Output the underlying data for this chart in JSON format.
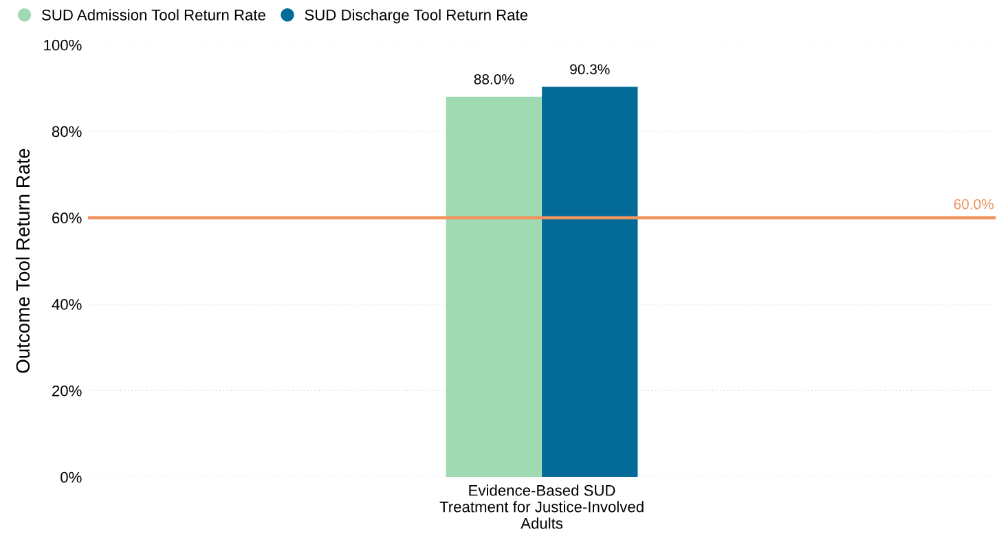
{
  "chart_data": {
    "type": "bar",
    "categories": [
      "Evidence-Based SUD\nTreatment for Justice-Involved\nAdults"
    ],
    "ylabel": "Outcome Tool Return Rate",
    "series": [
      {
        "name": "SUD Admission Tool Return Rate",
        "color": "#a0dab3",
        "values": [
          88.0
        ],
        "value_labels": [
          "88.0%"
        ]
      },
      {
        "name": "SUD Discharge Tool Return Rate",
        "color": "#046b99",
        "values": [
          90.3
        ],
        "value_labels": [
          "90.3%"
        ]
      }
    ],
    "ylim": [
      0,
      100
    ],
    "yticks": [
      {
        "value": 0,
        "label": "0%"
      },
      {
        "value": 20,
        "label": "20%"
      },
      {
        "value": 40,
        "label": "40%"
      },
      {
        "value": 60,
        "label": "60%"
      },
      {
        "value": 80,
        "label": "80%"
      },
      {
        "value": 100,
        "label": "100%"
      }
    ],
    "ref_lines": [
      {
        "axis": "y",
        "value": 60,
        "label": "60.0%",
        "color": "#f0935f"
      }
    ],
    "grid": "y",
    "legend": "top left"
  }
}
